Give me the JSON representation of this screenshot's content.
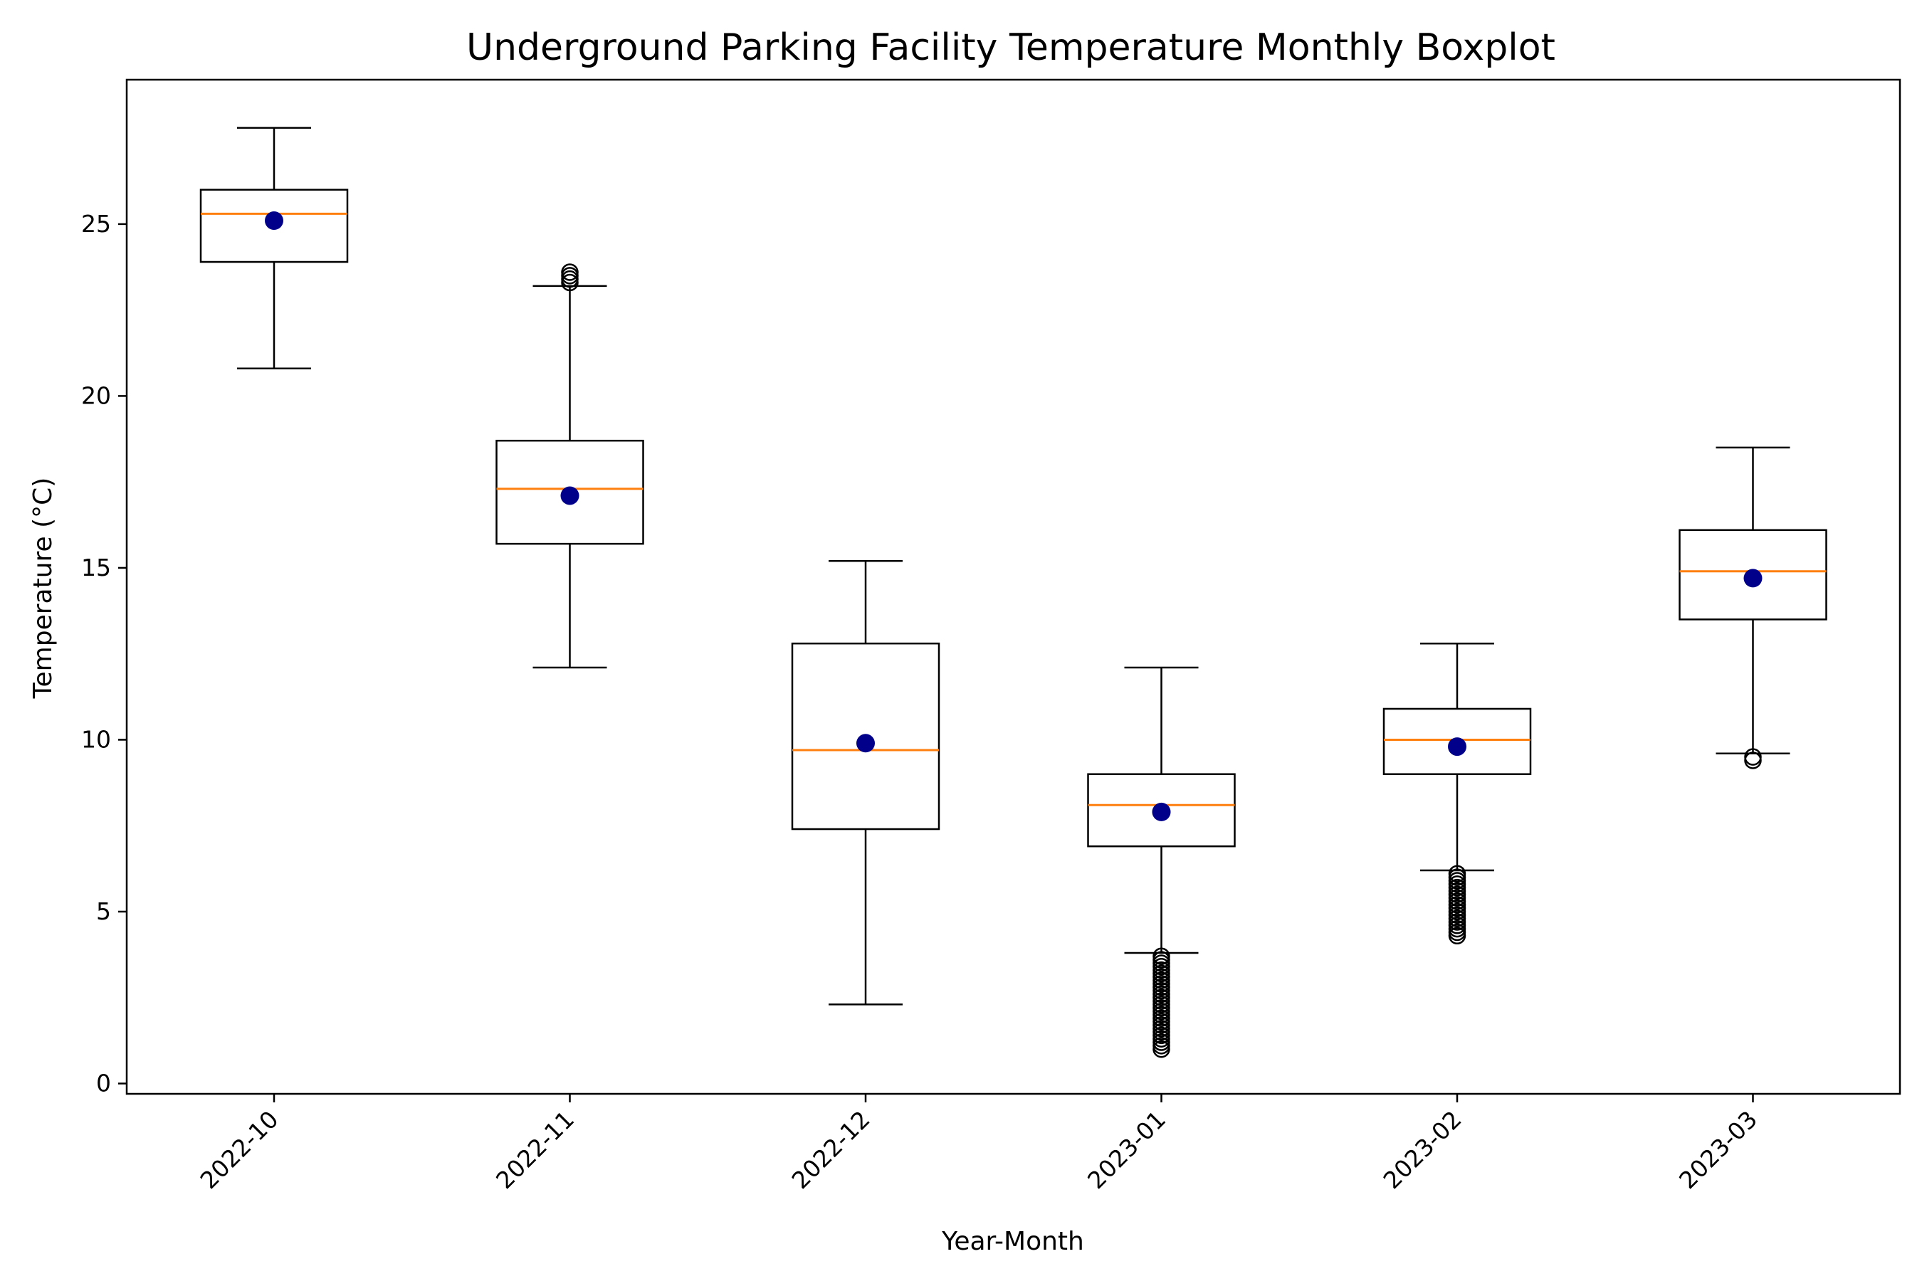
{
  "chart_data": {
    "type": "boxplot",
    "title": "Underground Parking Facility Temperature Monthly Boxplot",
    "xlabel": "Year-Month",
    "ylabel": "Temperature (°C)",
    "ylim": [
      -0.3,
      29.2
    ],
    "yticks": [
      0,
      5,
      10,
      15,
      20,
      25
    ],
    "grid": false,
    "categories": [
      "2022-10",
      "2022-11",
      "2022-12",
      "2023-01",
      "2023-02",
      "2023-03"
    ],
    "boxes": [
      {
        "whisker_low": 20.8,
        "q1": 23.9,
        "median": 25.3,
        "q3": 26.0,
        "whisker_high": 27.8,
        "mean": 25.1,
        "outliers": []
      },
      {
        "whisker_low": 12.1,
        "q1": 15.7,
        "median": 17.3,
        "q3": 18.7,
        "whisker_high": 23.2,
        "mean": 17.1,
        "outliers": [
          23.3,
          23.4,
          23.5,
          23.6
        ]
      },
      {
        "whisker_low": 2.3,
        "q1": 7.4,
        "median": 9.7,
        "q3": 12.8,
        "whisker_high": 15.2,
        "mean": 9.9,
        "outliers": []
      },
      {
        "whisker_low": 3.8,
        "q1": 6.9,
        "median": 8.1,
        "q3": 9.0,
        "whisker_high": 12.1,
        "mean": 7.9,
        "outliers": [
          3.7,
          3.6,
          3.5,
          3.4,
          3.3,
          3.2,
          3.1,
          3.0,
          2.9,
          2.8,
          2.7,
          2.6,
          2.5,
          2.4,
          2.3,
          2.2,
          2.1,
          2.0,
          1.9,
          1.8,
          1.7,
          1.6,
          1.5,
          1.4,
          1.3,
          1.2,
          1.1,
          1.0
        ]
      },
      {
        "whisker_low": 6.2,
        "q1": 9.0,
        "median": 10.0,
        "q3": 10.9,
        "whisker_high": 12.8,
        "mean": 9.8,
        "outliers": [
          6.1,
          6.0,
          5.9,
          5.8,
          5.7,
          5.6,
          5.5,
          5.4,
          5.3,
          5.2,
          5.1,
          5.0,
          4.9,
          4.8,
          4.7,
          4.6,
          4.5,
          4.4,
          4.3
        ]
      },
      {
        "whisker_low": 9.6,
        "q1": 13.5,
        "median": 14.9,
        "q3": 16.1,
        "whisker_high": 18.5,
        "mean": 14.7,
        "outliers": [
          9.4,
          9.5
        ]
      }
    ],
    "colors": {
      "box": "#000000",
      "median": "#ff7f0e",
      "mean": "#00008b",
      "outlier": "#000000"
    }
  }
}
